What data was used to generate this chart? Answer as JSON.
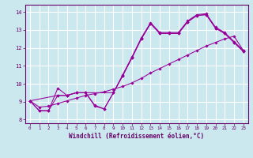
{
  "background_color": "#cbe8ef",
  "grid_color": "#ffffff",
  "line_color": "#990099",
  "marker_color": "#990099",
  "xlabel": "Windchill (Refroidissement éolien,°C)",
  "xlabel_color": "#660066",
  "tick_color": "#660066",
  "ylim": [
    7.8,
    14.4
  ],
  "xlim": [
    -0.5,
    23.5
  ],
  "yticks": [
    8,
    9,
    10,
    11,
    12,
    13,
    14
  ],
  "xticks": [
    0,
    1,
    2,
    3,
    4,
    5,
    6,
    7,
    8,
    9,
    10,
    11,
    12,
    13,
    14,
    15,
    16,
    17,
    18,
    19,
    20,
    21,
    22,
    23
  ],
  "line1_x": [
    0,
    1,
    2,
    3,
    4,
    5,
    6,
    7,
    8,
    9,
    10,
    11,
    12,
    13,
    14,
    15,
    16,
    17,
    18,
    19,
    20,
    21,
    22,
    23
  ],
  "line1_y": [
    9.05,
    8.5,
    8.5,
    9.75,
    9.35,
    9.5,
    9.5,
    8.8,
    8.6,
    9.5,
    10.5,
    11.5,
    12.55,
    13.4,
    12.85,
    12.85,
    12.85,
    13.5,
    13.85,
    13.9,
    13.15,
    12.85,
    12.35,
    11.85
  ],
  "line2_x": [
    0,
    1,
    2,
    3,
    4,
    5,
    6,
    7,
    8,
    9,
    10,
    11,
    12,
    13,
    14,
    15,
    16,
    17,
    18,
    19,
    20,
    21,
    22,
    23
  ],
  "line2_y": [
    9.05,
    8.5,
    8.5,
    9.35,
    9.35,
    9.5,
    9.5,
    8.75,
    8.6,
    9.5,
    10.45,
    11.45,
    12.5,
    13.35,
    12.8,
    12.8,
    12.8,
    13.45,
    13.8,
    13.85,
    13.1,
    12.8,
    12.3,
    11.8
  ],
  "line3_x": [
    0,
    3,
    4,
    5,
    6,
    9,
    10,
    11,
    12,
    13,
    14,
    15,
    16,
    17,
    18,
    19,
    20,
    21,
    22,
    23
  ],
  "line3_y": [
    9.05,
    9.35,
    9.35,
    9.5,
    9.5,
    9.5,
    10.45,
    11.45,
    12.5,
    13.35,
    12.8,
    12.8,
    12.8,
    13.45,
    13.8,
    13.85,
    13.1,
    12.8,
    12.3,
    11.8
  ],
  "line4_x": [
    0,
    1,
    2,
    3,
    4,
    5,
    6,
    7,
    8,
    9,
    10,
    11,
    12,
    13,
    14,
    15,
    16,
    17,
    18,
    19,
    20,
    21,
    22,
    23
  ],
  "line4_y": [
    9.05,
    8.7,
    8.75,
    8.9,
    9.05,
    9.2,
    9.35,
    9.45,
    9.55,
    9.7,
    9.85,
    10.05,
    10.3,
    10.6,
    10.85,
    11.1,
    11.35,
    11.6,
    11.85,
    12.1,
    12.3,
    12.5,
    12.65,
    11.85
  ]
}
